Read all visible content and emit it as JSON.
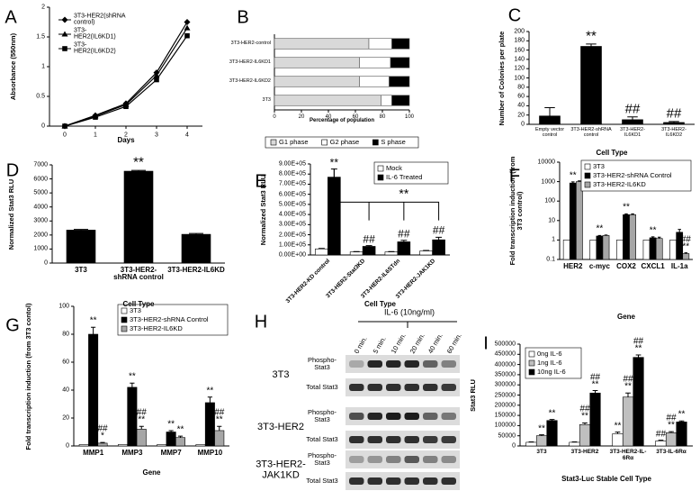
{
  "chart_data": [
    {
      "type": "line",
      "panel": "A",
      "xlabel": "Days",
      "ylabel": "Absorbance (550nm)",
      "x": [
        0,
        1,
        2,
        3,
        4
      ],
      "xlim": [
        -0.5,
        4.5
      ],
      "xticks": [
        0,
        1,
        2,
        3,
        4
      ],
      "ylim": [
        0,
        2
      ],
      "yticks": [
        0,
        0.5,
        1,
        1.5,
        2
      ],
      "legend": "upper left",
      "series": [
        {
          "name": "3T3-HER2(shRNA control)",
          "color": "#000000",
          "marker": "diamond",
          "values": [
            0,
            0.18,
            0.38,
            0.9,
            1.75
          ]
        },
        {
          "name": "3T3-HER2(IL6KD1)",
          "color": "#000000",
          "marker": "triangle",
          "values": [
            0,
            0.17,
            0.36,
            0.85,
            1.65
          ]
        },
        {
          "name": "3T3-HER2(IL6KD2)",
          "color": "#000000",
          "marker": "square",
          "values": [
            0,
            0.15,
            0.33,
            0.78,
            1.52
          ]
        }
      ]
    },
    {
      "type": "bar",
      "orientation": "horizontal",
      "stacked": true,
      "panel": "B",
      "xlabel": "Percentage of population",
      "categories": [
        "3T3-HER2-control",
        "3T3-HER2-IL6KD1",
        "3T3-HER2-IL6KD2",
        "3T3"
      ],
      "xlim": [
        0,
        100
      ],
      "xticks": [
        0,
        20,
        40,
        60,
        80,
        100
      ],
      "legend": "lower center",
      "series": [
        {
          "name": "G1 phase",
          "color": "#d9d9d9",
          "values": [
            70,
            63,
            63,
            79
          ]
        },
        {
          "name": "G2 phase",
          "color": "#ffffff",
          "values": [
            17,
            23,
            22,
            8
          ]
        },
        {
          "name": "S phase",
          "color": "#000000",
          "values": [
            13,
            14,
            15,
            13
          ]
        }
      ]
    },
    {
      "type": "bar",
      "panel": "C",
      "xlabel": "Cell Type",
      "ylabel": "Number of Colonies per plate",
      "categories": [
        "Empty vector control",
        "3T3-HER2-shRNA control",
        "3T3-HER2-IL6KD1",
        "3T3-HER2-IL6KD2"
      ],
      "values": [
        18,
        168,
        10,
        4
      ],
      "errors": [
        18,
        5,
        6,
        2
      ],
      "significance": [
        null,
        [
          "**"
        ],
        [
          "##"
        ],
        [
          "##"
        ]
      ],
      "color": "#000000",
      "ylim": [
        0,
        200
      ],
      "yticks": [
        0,
        20,
        40,
        60,
        80,
        100,
        120,
        140,
        160,
        180,
        200
      ]
    },
    {
      "type": "bar",
      "panel": "D",
      "xlabel": "Cell Type",
      "ylabel": "Normalized Stat3 RLU",
      "categories": [
        "3T3",
        "3T3-HER2-shRNA control",
        "3T3-HER2-IL6KD"
      ],
      "values": [
        2350,
        6550,
        2050
      ],
      "errors": [
        50,
        60,
        60
      ],
      "significance": [
        null,
        [
          "**"
        ],
        null
      ],
      "color": "#000000",
      "ylim": [
        0,
        7000
      ],
      "yticks": [
        0,
        1000,
        2000,
        3000,
        4000,
        5000,
        6000,
        7000
      ]
    },
    {
      "type": "bar",
      "panel": "E",
      "xlabel": "Cell Type",
      "ylabel": "Normalized Stat3 RLU",
      "categories": [
        "3T3-HER2-KD control",
        "3T3-HER2-Stat3KD",
        "3T3-HER2-IL6STdn",
        "3T3-HER2-JAK1KD"
      ],
      "xtick_rotation": -45,
      "legend": "upper right",
      "bracket_label": "**",
      "ylim": [
        0,
        900000
      ],
      "yticks": [
        {
          "value": 0,
          "label": "0.00E+00"
        },
        {
          "value": 100000,
          "label": "1.00E+05"
        },
        {
          "value": 200000,
          "label": "2.00E+05"
        },
        {
          "value": 300000,
          "label": "3.00E+05"
        },
        {
          "value": 400000,
          "label": "4.00E+05"
        },
        {
          "value": 500000,
          "label": "5.00E+05"
        },
        {
          "value": 600000,
          "label": "6.00E+05"
        },
        {
          "value": 700000,
          "label": "7.00E+05"
        },
        {
          "value": 800000,
          "label": "8.00E+05"
        },
        {
          "value": 900000,
          "label": "9.00E+05"
        }
      ],
      "series": [
        {
          "name": "Mock",
          "color": "#ffffff",
          "values": [
            60000,
            30000,
            30000,
            40000
          ],
          "errors": [
            5000,
            3000,
            3000,
            5000
          ]
        },
        {
          "name": "IL-6 Treated",
          "color": "#000000",
          "values": [
            770000,
            85000,
            130000,
            150000
          ],
          "errors": [
            80000,
            8000,
            15000,
            25000
          ],
          "significance": [
            [
              "**"
            ],
            [
              "##"
            ],
            [
              "##"
            ],
            [
              "##"
            ]
          ]
        }
      ]
    },
    {
      "type": "bar",
      "panel": "F",
      "xlabel": "Gene",
      "ylabel": "Fold transcription induction (from 3T3 control)",
      "categories": [
        "HER2",
        "c-myc",
        "COX2",
        "CXCL1",
        "IL-1a"
      ],
      "yscale": "log",
      "legend": "upper right",
      "ylim": [
        0.1,
        10000
      ],
      "yticks": [
        0.1,
        1,
        10,
        100,
        1000,
        10000
      ],
      "series": [
        {
          "name": "3T3",
          "color": "#ffffff",
          "values": [
            1,
            1,
            1,
            1,
            1
          ]
        },
        {
          "name": "3T3-HER2-shRNA Control",
          "color": "#000000",
          "values": [
            850,
            1.6,
            20,
            1.3,
            2.5
          ],
          "errors": [
            120,
            0.1,
            2,
            0.15,
            1
          ],
          "significance": [
            [
              "**"
            ],
            [
              "**"
            ],
            [
              "**"
            ],
            [
              "**"
            ],
            null
          ]
        },
        {
          "name": "3T3-HER2-IL6KD",
          "color": "#a6a6a6",
          "values": [
            1000,
            1.7,
            20,
            1.2,
            0.2
          ],
          "errors": [
            100,
            0.1,
            2,
            0.2,
            0.02
          ],
          "significance": [
            null,
            null,
            null,
            null,
            [
              "##",
              "**"
            ]
          ]
        }
      ]
    },
    {
      "type": "bar",
      "panel": "G",
      "xlabel": "Gene",
      "ylabel": "Fold transcription induction (from 3T3 contol)",
      "categories": [
        "MMP1",
        "MMP3",
        "MMP7",
        "MMP10"
      ],
      "legend": "upper right",
      "ylim": [
        0,
        100
      ],
      "yticks": [
        0,
        20,
        40,
        60,
        80,
        100
      ],
      "series": [
        {
          "name": "3T3",
          "color": "#ffffff",
          "values": [
            1,
            1,
            1,
            1
          ]
        },
        {
          "name": "3T3-HER2-shRNA Control",
          "color": "#000000",
          "values": [
            80,
            42,
            10,
            31
          ],
          "errors": [
            5,
            3,
            1,
            4
          ],
          "significance": [
            [
              "**"
            ],
            [
              "**"
            ],
            [
              "**"
            ],
            [
              "**"
            ]
          ]
        },
        {
          "name": "3T3-HER2-IL6KD",
          "color": "#a6a6a6",
          "values": [
            2,
            12,
            6,
            11
          ],
          "errors": [
            0.5,
            2,
            1,
            3
          ],
          "significance": [
            [
              "##",
              "*"
            ],
            [
              "##",
              "**"
            ],
            [
              "**"
            ],
            [
              "##",
              "**"
            ]
          ]
        }
      ]
    },
    {
      "type": "bar",
      "panel": "I",
      "xlabel": "Stat3-Luc Stable Cell Type",
      "ylabel": "Stat3 RLU",
      "categories": [
        "3T3",
        "3T3-HER2",
        "3T3-HER2-IL-6Rα",
        "3T3-IL-6Rα"
      ],
      "legend": "upper left",
      "ylim": [
        0,
        500000
      ],
      "yticks": [
        0,
        50000,
        100000,
        150000,
        200000,
        250000,
        300000,
        350000,
        400000,
        450000,
        500000
      ],
      "series": [
        {
          "name": "0ng IL-6",
          "color": "#ffffff",
          "values": [
            18000,
            18000,
            60000,
            25000
          ],
          "errors": [
            2000,
            2000,
            8000,
            3000
          ],
          "significance": [
            null,
            null,
            [
              "**"
            ],
            [
              "##"
            ]
          ]
        },
        {
          "name": "1ng IL-6",
          "color": "#bfbfbf",
          "values": [
            50000,
            105000,
            240000,
            65000
          ],
          "errors": [
            5000,
            8000,
            20000,
            5000
          ],
          "significance": [
            [
              "**"
            ],
            [
              "##",
              "**"
            ],
            [
              "##",
              "**"
            ],
            [
              "##",
              "**"
            ]
          ]
        },
        {
          "name": "10ng IL-6",
          "color": "#000000",
          "values": [
            125000,
            260000,
            435000,
            118000
          ],
          "errors": [
            5000,
            12000,
            12000,
            5000
          ],
          "significance": [
            [
              "**"
            ],
            [
              "##",
              "**"
            ],
            [
              "##",
              "**"
            ],
            [
              "**"
            ]
          ]
        }
      ]
    }
  ],
  "blot": {
    "panel": "H",
    "treatment": "IL-6 (10ng/ml)",
    "times": [
      "0 min.",
      "5 min.",
      "10 min.",
      "20 min.",
      "40 min.",
      "60 min."
    ],
    "groups": [
      {
        "cell": "3T3",
        "rows": [
          "Phospho-Stat3",
          "Total Stat3"
        ]
      },
      {
        "cell": "3T3-HER2",
        "rows": [
          "Phospho-Stat3",
          "Total Stat3"
        ]
      },
      {
        "cell": "3T3-HER2-JAK1KD",
        "rows": [
          "Phospho-Stat3",
          "Total Stat3"
        ]
      }
    ]
  }
}
